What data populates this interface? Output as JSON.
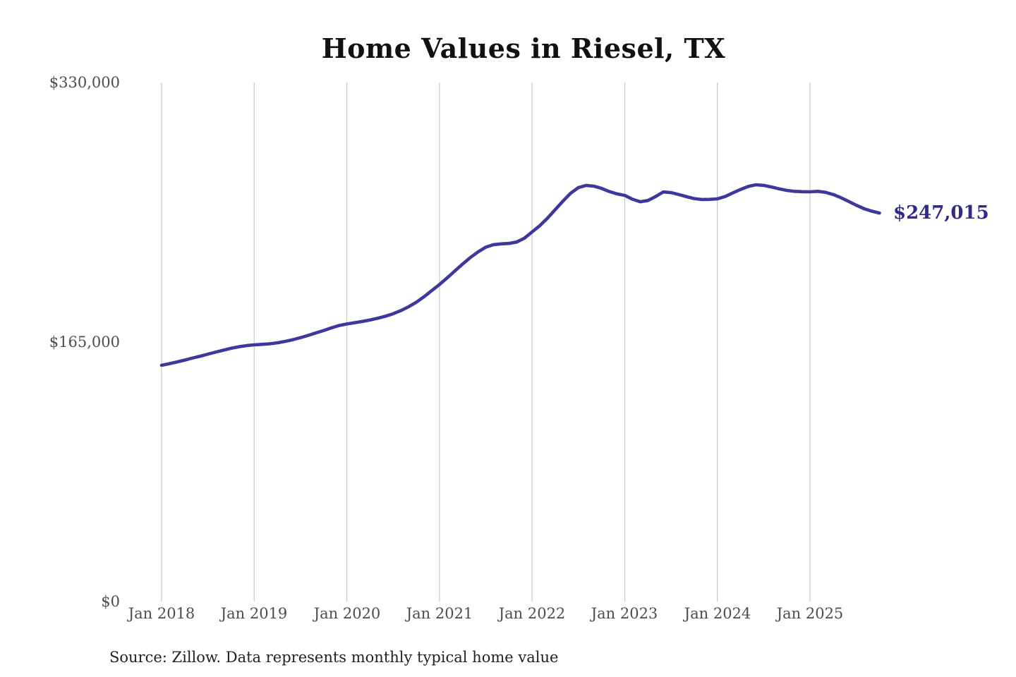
{
  "chart_data": {
    "type": "line",
    "title": "Home Values in Riesel, TX",
    "source_note": "Source: Zillow. Data represents monthly typical home value",
    "xlabel": "",
    "ylabel": "",
    "ylim": [
      0,
      330000
    ],
    "grid": "vertical-only",
    "legend": "none",
    "colors": {
      "line": "#3e389c",
      "end_label": "#2d2a8c",
      "gridline": "#cccccc",
      "tick_text": "#4d4d4d",
      "title_text": "#111111"
    },
    "y_ticks": [
      {
        "label": "$330,000",
        "value": 330000
      },
      {
        "label": "$165,000",
        "value": 165000
      },
      {
        "label": "$0",
        "value": 0
      }
    ],
    "x_ticks": [
      {
        "label": "Jan 2018",
        "month_index": 0
      },
      {
        "label": "Jan 2019",
        "month_index": 12
      },
      {
        "label": "Jan 2020",
        "month_index": 24
      },
      {
        "label": "Jan 2021",
        "month_index": 36
      },
      {
        "label": "Jan 2022",
        "month_index": 48
      },
      {
        "label": "Jan 2023",
        "month_index": 60
      },
      {
        "label": "Jan 2024",
        "month_index": 72
      },
      {
        "label": "Jan 2025",
        "month_index": 84
      }
    ],
    "series": [
      {
        "name": "Monthly typical home value",
        "end_label": "$247,015",
        "end_value": 247015,
        "x": [
          "2018-01",
          "2018-02",
          "2018-03",
          "2018-04",
          "2018-05",
          "2018-06",
          "2018-07",
          "2018-08",
          "2018-09",
          "2018-10",
          "2018-11",
          "2018-12",
          "2019-01",
          "2019-02",
          "2019-03",
          "2019-04",
          "2019-05",
          "2019-06",
          "2019-07",
          "2019-08",
          "2019-09",
          "2019-10",
          "2019-11",
          "2019-12",
          "2020-01",
          "2020-02",
          "2020-03",
          "2020-04",
          "2020-05",
          "2020-06",
          "2020-07",
          "2020-08",
          "2020-09",
          "2020-10",
          "2020-11",
          "2020-12",
          "2021-01",
          "2021-02",
          "2021-03",
          "2021-04",
          "2021-05",
          "2021-06",
          "2021-07",
          "2021-08",
          "2021-09",
          "2021-10",
          "2021-11",
          "2021-12",
          "2022-01",
          "2022-02",
          "2022-03",
          "2022-04",
          "2022-05",
          "2022-06",
          "2022-07",
          "2022-08",
          "2022-09",
          "2022-10",
          "2022-11",
          "2022-12",
          "2023-01",
          "2023-02",
          "2023-03",
          "2023-04",
          "2023-05",
          "2023-06",
          "2023-07",
          "2023-08",
          "2023-09",
          "2023-10",
          "2023-11",
          "2023-12",
          "2024-01",
          "2024-02",
          "2024-03",
          "2024-04",
          "2024-05",
          "2024-06",
          "2024-07",
          "2024-08",
          "2024-09",
          "2024-10",
          "2024-11",
          "2024-12",
          "2025-01",
          "2025-02",
          "2025-03",
          "2025-04",
          "2025-05",
          "2025-06",
          "2025-07",
          "2025-08",
          "2025-09",
          "2025-10"
        ],
        "values": [
          150200,
          151200,
          152300,
          153500,
          154800,
          156000,
          157300,
          158600,
          159800,
          161000,
          162000,
          162700,
          163200,
          163500,
          163900,
          164500,
          165400,
          166500,
          167800,
          169200,
          170800,
          172300,
          174000,
          175500,
          176500,
          177300,
          178100,
          179000,
          180100,
          181400,
          183000,
          185000,
          187400,
          190300,
          193800,
          197700,
          201600,
          205800,
          210200,
          214600,
          218700,
          222300,
          225300,
          226900,
          227400,
          227700,
          228600,
          231000,
          235000,
          239000,
          243800,
          249200,
          254600,
          259600,
          263200,
          264600,
          264100,
          262700,
          260700,
          259200,
          258200,
          255800,
          254200,
          255000,
          257500,
          260400,
          260000,
          258800,
          257400,
          256200,
          255600,
          255700,
          256000,
          257500,
          259800,
          262000,
          263900,
          265000,
          264600,
          263600,
          262400,
          261400,
          260800,
          260600,
          260500,
          260800,
          260200,
          258800,
          256800,
          254400,
          252000,
          249800,
          248200,
          247015
        ]
      }
    ]
  }
}
